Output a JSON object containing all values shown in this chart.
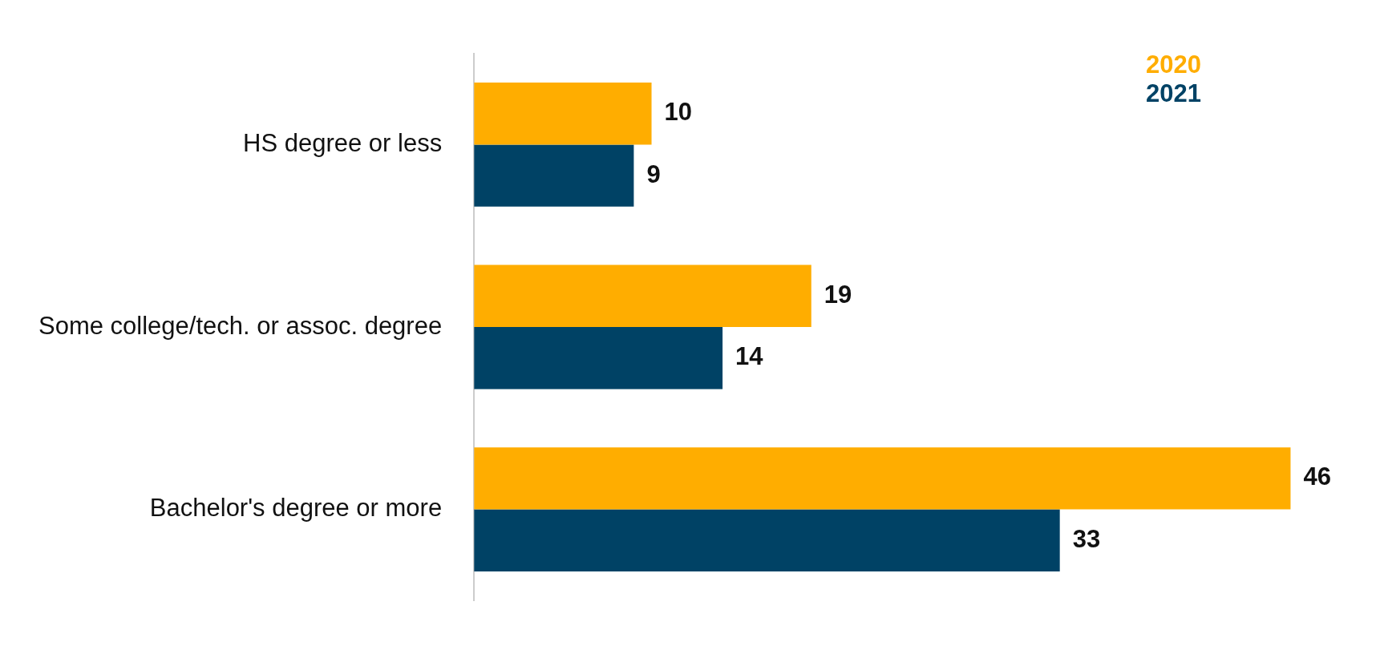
{
  "chart_data": {
    "type": "bar",
    "orientation": "horizontal",
    "categories": [
      "HS degree or less",
      "Some college/tech. or assoc. degree",
      "Bachelor's degree or more"
    ],
    "series": [
      {
        "name": "2020",
        "color": "#ffad00",
        "values": [
          10,
          19,
          46
        ]
      },
      {
        "name": "2021",
        "color": "#004265",
        "values": [
          9,
          14,
          33
        ]
      }
    ],
    "data_labels": true,
    "legend": "top right"
  }
}
